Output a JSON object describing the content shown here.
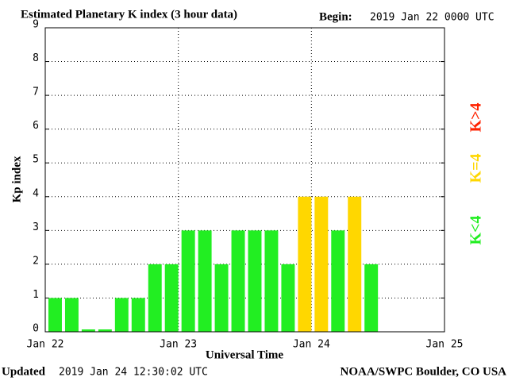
{
  "chart_data": {
    "type": "bar",
    "title": "Estimated Planetary K index (3 hour data)",
    "begin_label": "Begin:",
    "begin": "2019 Jan 22 0000 UTC",
    "y_label": "Kp index",
    "x_label": "Universal Time",
    "updated_label": "Updated",
    "updated": "2019 Jan 24 12:30:02 UTC",
    "source": "NOAA/SWPC Boulder, CO USA",
    "x": [
      0,
      0.125,
      0.25,
      0.375,
      0.5,
      0.625,
      0.75,
      0.875,
      1,
      1.125,
      1.25,
      1.375,
      1.5,
      1.625,
      1.75,
      1.875,
      2,
      2.125,
      2.25,
      2.375
    ],
    "values": [
      1,
      1,
      0,
      0,
      1,
      1,
      2,
      2,
      3,
      3,
      2,
      3,
      3,
      3,
      2,
      4,
      4,
      3,
      4,
      2
    ],
    "bar_width": 0.125,
    "threshold": 4,
    "legend": [
      {
        "label": "K<4",
        "color": "#22ee22"
      },
      {
        "label": "K=4",
        "color": "#ffd700"
      },
      {
        "label": "K>4",
        "color": "#ff2200"
      }
    ],
    "xlim": [
      0,
      3
    ],
    "xticks": [
      {
        "value": 0,
        "label": "Jan 22"
      },
      {
        "value": 1,
        "label": "Jan 23"
      },
      {
        "value": 2,
        "label": "Jan 24"
      },
      {
        "value": 3,
        "label": "Jan 25"
      }
    ],
    "ylim": [
      0,
      9
    ],
    "yticks": [
      0,
      1,
      2,
      3,
      4,
      5,
      6,
      7,
      8,
      9
    ],
    "grid": true
  }
}
